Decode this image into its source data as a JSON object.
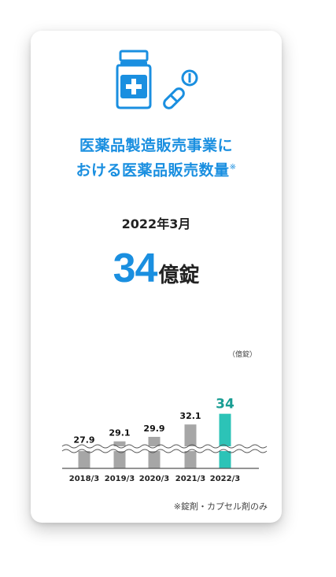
{
  "heading": {
    "line1": "医薬品製造販売事業に",
    "line2": "ける医薬品販売数量",
    "line2_prefix": "お",
    "note_mark": "※"
  },
  "date_label": "2022年3月",
  "headline_value": "34",
  "headline_unit": "億錠",
  "footnote": "※錠剤・カプセル剤のみ",
  "colors": {
    "accent": "#1a8fe0",
    "highlight_bar": "#2cc3b7",
    "highlight_label": "#1a9e94",
    "bar": "#a6a6a6"
  },
  "icons": [
    "medicine-bottle-icon",
    "capsule-icon",
    "tablet-icon"
  ],
  "chart_data": {
    "type": "bar",
    "categories": [
      "2018/3",
      "2019/3",
      "2020/3",
      "2021/3",
      "2022/3"
    ],
    "values": [
      27.9,
      29.1,
      29.9,
      32.1,
      34
    ],
    "value_labels": [
      "27.9",
      "29.1",
      "29.9",
      "32.1",
      "34"
    ],
    "unit_label": "（億錠）",
    "axis_break": true,
    "highlight_index": 4
  }
}
